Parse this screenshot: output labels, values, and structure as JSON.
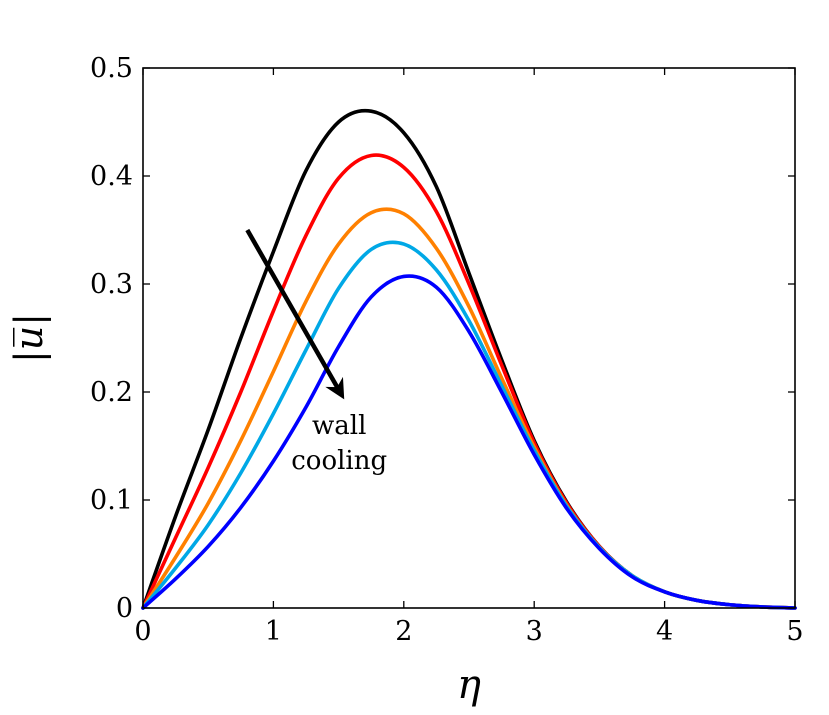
{
  "chart_data": {
    "type": "line",
    "title": "",
    "xlabel": "η",
    "ylabel": "|u̅|",
    "xlim": [
      0,
      5
    ],
    "ylim": [
      0,
      0.5
    ],
    "xticks": [
      0,
      1,
      2,
      3,
      4,
      5
    ],
    "yticks": [
      0,
      0.1,
      0.2,
      0.3,
      0.4,
      0.5
    ],
    "xtick_labels": [
      "0",
      "1",
      "2",
      "3",
      "4",
      "5"
    ],
    "ytick_labels": [
      "0",
      "0.1",
      "0.2",
      "0.3",
      "0.4",
      "0.5"
    ],
    "grid": false,
    "legend": "none",
    "annotation": {
      "lines": [
        "wall",
        "cooling"
      ],
      "arrow_from": [
        0.8,
        0.35
      ],
      "arrow_to": [
        1.52,
        0.198
      ]
    },
    "series": [
      {
        "color": "#000000",
        "x": [
          0,
          0.25,
          0.5,
          0.75,
          1.0,
          1.25,
          1.5,
          1.75,
          2.0,
          2.25,
          2.5,
          2.75,
          3.0,
          3.25,
          3.5,
          3.75,
          4.0,
          4.25,
          4.5,
          4.75,
          5.0
        ],
        "y": [
          0,
          0.085,
          0.165,
          0.25,
          0.33,
          0.405,
          0.45,
          0.46,
          0.44,
          0.39,
          0.31,
          0.23,
          0.155,
          0.098,
          0.057,
          0.03,
          0.015,
          0.007,
          0.003,
          0.001,
          0.0
        ]
      },
      {
        "color": "#ff0000",
        "x": [
          0,
          0.25,
          0.5,
          0.75,
          1.0,
          1.25,
          1.5,
          1.75,
          2.0,
          2.25,
          2.5,
          2.75,
          3.0,
          3.25,
          3.5,
          3.75,
          4.0,
          4.25,
          4.5,
          4.75,
          5.0
        ],
        "y": [
          0,
          0.065,
          0.13,
          0.2,
          0.275,
          0.345,
          0.398,
          0.419,
          0.408,
          0.367,
          0.3,
          0.225,
          0.153,
          0.097,
          0.057,
          0.03,
          0.015,
          0.007,
          0.003,
          0.001,
          0.0
        ]
      },
      {
        "color": "#ff8000",
        "x": [
          0,
          0.25,
          0.5,
          0.75,
          1.0,
          1.25,
          1.5,
          1.75,
          2.0,
          2.25,
          2.5,
          2.75,
          3.0,
          3.25,
          3.5,
          3.75,
          4.0,
          4.25,
          4.5,
          4.75,
          5.0
        ],
        "y": [
          0,
          0.047,
          0.097,
          0.155,
          0.219,
          0.284,
          0.337,
          0.366,
          0.365,
          0.333,
          0.279,
          0.213,
          0.149,
          0.095,
          0.056,
          0.03,
          0.015,
          0.007,
          0.003,
          0.001,
          0.0
        ]
      },
      {
        "color": "#00a8e6",
        "x": [
          0,
          0.25,
          0.5,
          0.75,
          1.0,
          1.25,
          1.5,
          1.75,
          2.0,
          2.25,
          2.5,
          2.75,
          3.0,
          3.25,
          3.5,
          3.75,
          4.0,
          4.25,
          4.5,
          4.75,
          5.0
        ],
        "y": [
          0,
          0.037,
          0.077,
          0.125,
          0.18,
          0.239,
          0.296,
          0.332,
          0.337,
          0.313,
          0.266,
          0.206,
          0.146,
          0.094,
          0.056,
          0.03,
          0.015,
          0.007,
          0.003,
          0.001,
          0.0
        ]
      },
      {
        "color": "#0000ff",
        "x": [
          0,
          0.25,
          0.5,
          0.75,
          1.0,
          1.25,
          1.5,
          1.75,
          2.0,
          2.25,
          2.5,
          2.75,
          3.0,
          3.25,
          3.5,
          3.75,
          4.0,
          4.25,
          4.5,
          4.75,
          5.0
        ],
        "y": [
          0,
          0.027,
          0.057,
          0.093,
          0.136,
          0.186,
          0.242,
          0.288,
          0.307,
          0.297,
          0.256,
          0.2,
          0.142,
          0.092,
          0.055,
          0.029,
          0.015,
          0.007,
          0.003,
          0.001,
          0.0
        ]
      }
    ]
  }
}
